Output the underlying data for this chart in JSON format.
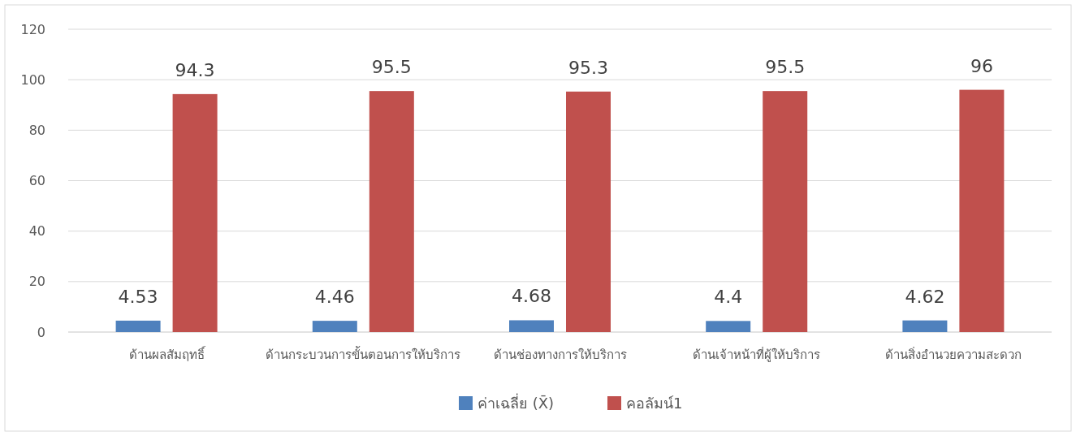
{
  "chart_data": {
    "type": "bar",
    "categories": [
      "ด้านผลสัมฤทธิ์",
      "ด้านกระบวนการขั้นตอนการให้บริการ",
      "ด้านช่องทางการให้บริการ",
      "ด้านเจ้าหน้าที่ผู้ให้บริการ",
      "ด้านสิ่งอำนวยความสะดวก"
    ],
    "series": [
      {
        "name": "ค่าเฉลี่ย (X̄)",
        "color": "#4f81bd",
        "values": [
          4.53,
          4.46,
          4.68,
          4.4,
          4.62
        ]
      },
      {
        "name": "คอลัมน์1",
        "color": "#c0504d",
        "values": [
          94.3,
          95.5,
          95.3,
          95.5,
          96
        ]
      }
    ],
    "ylim": [
      0,
      120
    ],
    "yticks": [
      0,
      20,
      40,
      60,
      80,
      100,
      120
    ],
    "grid": "y",
    "legend": "bottom",
    "data_labels": true
  }
}
